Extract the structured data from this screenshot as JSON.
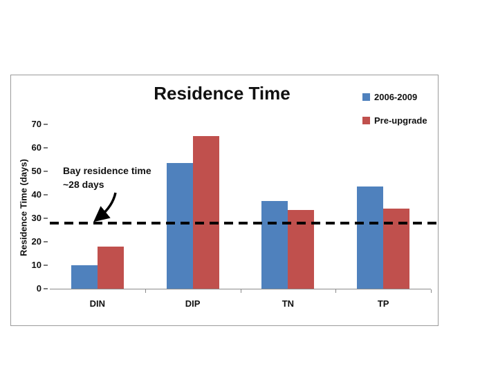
{
  "window": {
    "background": "#ffffff"
  },
  "chart": {
    "title": "Residence Time",
    "y_axis_label": "Residence Time (days)",
    "annotation_line1": "Bay residence time",
    "annotation_line2": "~28 days",
    "legend": [
      {
        "label": "2006-2009",
        "color": "#4F81BD"
      },
      {
        "label": "Pre-upgrade",
        "color": "#C0504D"
      }
    ]
  },
  "chart_data": {
    "type": "bar",
    "title": "Residence Time",
    "ylabel": "Residence Time (days)",
    "categories": [
      "DIN",
      "DIP",
      "TN",
      "TP"
    ],
    "series": [
      {
        "name": "2006-2009",
        "color": "#4F81BD",
        "values": [
          10,
          53.5,
          37.5,
          43.5
        ]
      },
      {
        "name": "Pre-upgrade",
        "color": "#C0504D",
        "values": [
          18,
          65,
          33.5,
          34
        ]
      }
    ],
    "ylim": [
      0,
      70
    ],
    "yticks": [
      0,
      10,
      20,
      30,
      40,
      50,
      60,
      70
    ],
    "grid": false,
    "legend_position": "top-right",
    "reference_line": {
      "value": 28,
      "style": "dashed",
      "color": "#000000",
      "annotation": "Bay residence time ~28 days"
    }
  }
}
